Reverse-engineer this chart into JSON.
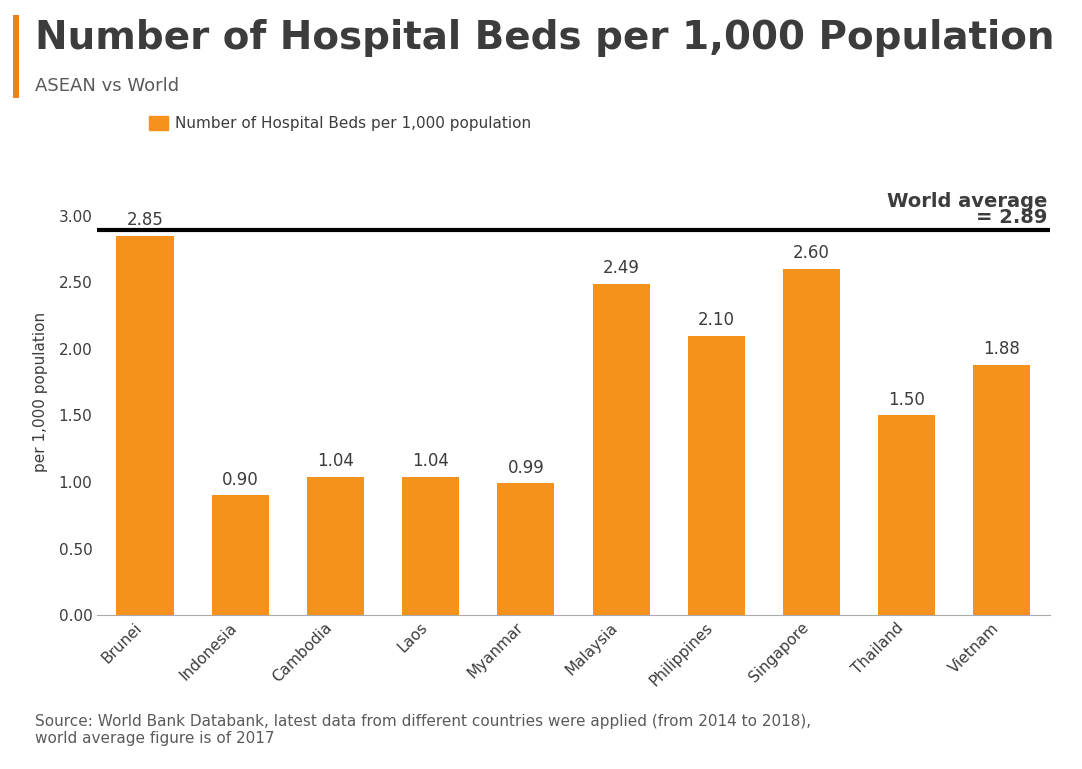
{
  "title": "Number of Hospital Beds per 1,000 Population",
  "subtitle": "ASEAN vs World",
  "categories": [
    "Brunei",
    "Indonesia",
    "Cambodia",
    "Laos",
    "Myanmar",
    "Malaysia",
    "Philippines",
    "Singapore",
    "Thailand",
    "Vietnam"
  ],
  "values": [
    2.85,
    0.9,
    1.04,
    1.04,
    0.99,
    2.49,
    2.1,
    2.6,
    1.5,
    1.88
  ],
  "bar_color": "#F5921E",
  "world_average": 2.89,
  "world_average_label_line1": "World average",
  "world_average_label_line2": "= 2.89",
  "ylabel": "per 1,000 population",
  "legend_label": "Number of Hospital Beds per 1,000 population",
  "source_text": "Source: World Bank Databank, latest data from different countries were applied (from 2014 to 2018),\nworld average figure is of 2017",
  "ylim": [
    0,
    3.35
  ],
  "yticks": [
    0.0,
    0.5,
    1.0,
    1.5,
    2.0,
    2.5,
    3.0
  ],
  "title_color": "#3C3C3C",
  "subtitle_color": "#5A5A5A",
  "title_fontsize": 28,
  "subtitle_fontsize": 13,
  "axis_label_fontsize": 11,
  "tick_fontsize": 11,
  "bar_label_fontsize": 12,
  "source_fontsize": 11,
  "legend_fontsize": 11,
  "world_avg_fontsize": 14,
  "background_color": "#FFFFFF",
  "left_accent_color": "#E8831A"
}
